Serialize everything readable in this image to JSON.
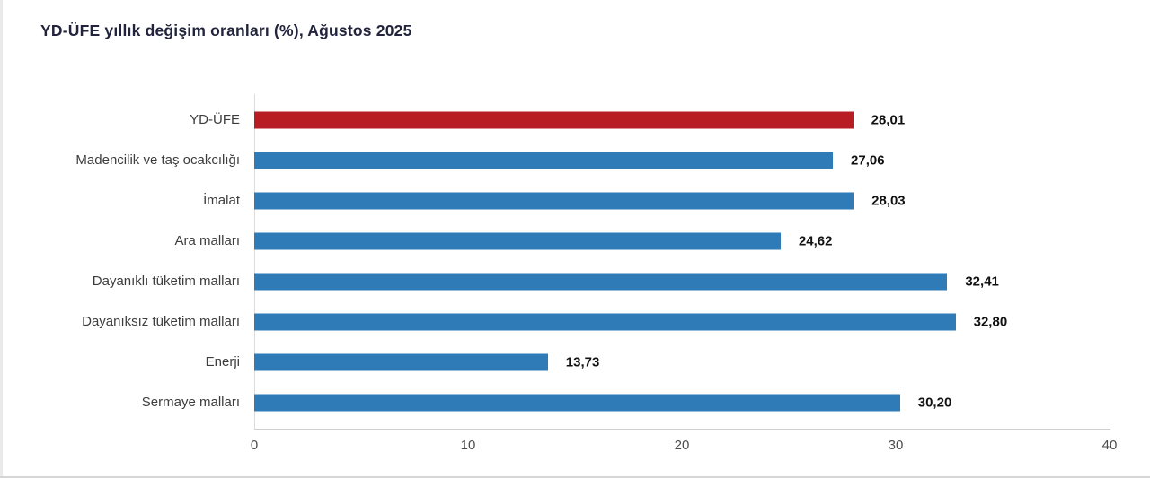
{
  "title": "YD-ÜFE yıllık değişim oranları (%), Ağustos 2025",
  "chart_data": {
    "type": "bar",
    "orientation": "horizontal",
    "title": "YD-ÜFE yıllık değişim oranları (%), Ağustos 2025",
    "categories": [
      "YD-ÜFE",
      "Madencilik ve taş ocakcılığı",
      "İmalat",
      "Ara malları",
      "Dayanıklı tüketim malları",
      "Dayanıksız tüketim malları",
      "Enerji",
      "Sermaye malları"
    ],
    "values": [
      28.01,
      27.06,
      28.03,
      24.62,
      32.41,
      32.8,
      13.73,
      30.2
    ],
    "value_labels": [
      "28,01",
      "27,06",
      "28,03",
      "24,62",
      "32,41",
      "32,80",
      "13,73",
      "30,20"
    ],
    "bar_colors": [
      "#b71d23",
      "#2e7bb8",
      "#2e7bb8",
      "#2e7bb8",
      "#2e7bb8",
      "#2e7bb8",
      "#2e7bb8",
      "#2e7bb8"
    ],
    "highlight_color": "#b71d23",
    "series_color": "#2e7bb8",
    "x_ticks": [
      "0",
      "10",
      "20",
      "30",
      "40"
    ],
    "xlim": [
      0,
      40
    ],
    "xlabel": "",
    "ylabel": "",
    "grid": false,
    "value_label_position": "end-of-bar"
  }
}
